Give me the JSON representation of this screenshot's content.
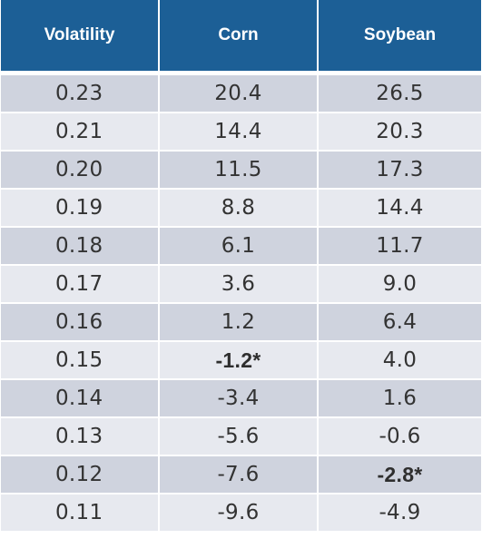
{
  "table": {
    "headers": [
      "Volatility",
      "Corn",
      "Soybean"
    ],
    "rows": [
      {
        "volatility": "0.23",
        "corn": "20.4",
        "soybean": "26.5"
      },
      {
        "volatility": "0.21",
        "corn": "14.4",
        "soybean": "20.3"
      },
      {
        "volatility": "0.20",
        "corn": "11.5",
        "soybean": "17.3"
      },
      {
        "volatility": "0.19",
        "corn": "8.8",
        "soybean": "14.4"
      },
      {
        "volatility": "0.18",
        "corn": "6.1",
        "soybean": "11.7"
      },
      {
        "volatility": "0.17",
        "corn": "3.6",
        "soybean": "9.0"
      },
      {
        "volatility": "0.16",
        "corn": "1.2",
        "soybean": "6.4"
      },
      {
        "volatility": "0.15",
        "corn": "-1.2*",
        "soybean": "4.0"
      },
      {
        "volatility": "0.14",
        "corn": "-3.4",
        "soybean": "1.6"
      },
      {
        "volatility": "0.13",
        "corn": "-5.6",
        "soybean": "-0.6"
      },
      {
        "volatility": "0.12",
        "corn": "-7.6",
        "soybean": "-2.8*"
      },
      {
        "volatility": "0.11",
        "corn": "-9.6",
        "soybean": "-4.9"
      }
    ]
  },
  "colors": {
    "header_background": "#1c5f96",
    "header_text": "#ffffff",
    "row_dark": "#cfd3de",
    "row_light": "#e7e9ef",
    "body_text": "#333333"
  }
}
